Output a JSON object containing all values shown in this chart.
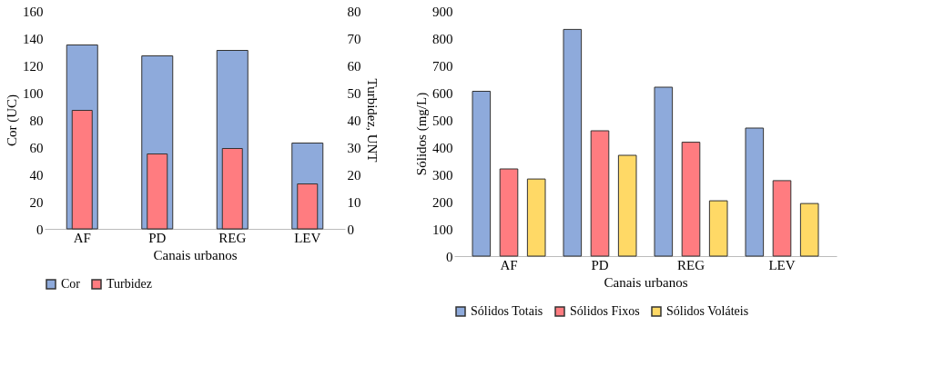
{
  "chart_data": [
    {
      "type": "bar",
      "xlabel": "Canais urbanos",
      "ylabel": "Cor (UC)",
      "y2label": "Turbidez, UNT",
      "categories": [
        "AF",
        "PD",
        "REG",
        "LEV"
      ],
      "series": [
        {
          "name": "Cor",
          "color": "#8eaadb",
          "values": [
            135,
            127,
            131,
            63
          ]
        },
        {
          "name": "Turbidez",
          "color": "#ff7c80",
          "axis": "y2",
          "values": [
            43.5,
            27.5,
            29.5,
            16.5
          ]
        }
      ],
      "ylim": [
        0,
        160
      ],
      "yticks": [
        0,
        20,
        40,
        60,
        80,
        100,
        120,
        140,
        160
      ],
      "y2lim": [
        0,
        80
      ],
      "y2ticks": [
        0,
        10,
        20,
        30,
        40,
        50,
        60,
        70,
        80
      ],
      "grid": false,
      "legend": "bottom"
    },
    {
      "type": "bar",
      "xlabel": "Canais urbanos",
      "ylabel": "Sólidos (mg/L)",
      "categories": [
        "AF",
        "PD",
        "REG",
        "LEV"
      ],
      "series": [
        {
          "name": "Sólidos Totais",
          "color": "#8eaadb",
          "values": [
            605,
            832,
            620,
            470
          ]
        },
        {
          "name": "Sólidos Fixos",
          "color": "#ff7c80",
          "values": [
            320,
            460,
            418,
            277
          ]
        },
        {
          "name": "Sólidos Voláteis",
          "color": "#ffd966",
          "values": [
            283,
            370,
            203,
            193
          ]
        }
      ],
      "ylim": [
        0,
        900
      ],
      "yticks": [
        0,
        100,
        200,
        300,
        400,
        500,
        600,
        700,
        800,
        900
      ],
      "grid": false,
      "legend": "bottom"
    }
  ]
}
